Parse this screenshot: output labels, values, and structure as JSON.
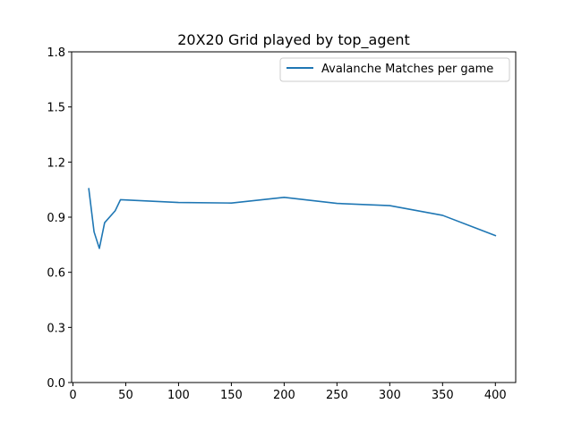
{
  "chart_data": {
    "type": "line",
    "title": "20X20 Grid played by top_agent",
    "xlabel": "",
    "ylabel": "",
    "xlim": [
      -1.25,
      419.25
    ],
    "ylim": [
      0.0,
      1.8
    ],
    "xticks": [
      0,
      50,
      100,
      150,
      200,
      250,
      300,
      350,
      400
    ],
    "xtick_labels": [
      "0",
      "50",
      "100",
      "150",
      "200",
      "250",
      "300",
      "350",
      "400"
    ],
    "yticks": [
      0.0,
      0.3,
      0.6,
      0.9,
      1.2,
      1.5,
      1.8
    ],
    "ytick_labels": [
      "0.0",
      "0.3",
      "0.6",
      "0.9",
      "1.2",
      "1.5",
      "1.8"
    ],
    "grid": false,
    "legend": "upper right",
    "series": [
      {
        "name": "Avalanche Matches per game",
        "color": "#1f77b4",
        "x": [
          15,
          20,
          25,
          30,
          40,
          45,
          100,
          150,
          200,
          250,
          300,
          350,
          400
        ],
        "y": [
          1.055,
          0.82,
          0.73,
          0.87,
          0.935,
          0.995,
          0.98,
          0.977,
          1.008,
          0.975,
          0.963,
          0.91,
          0.8
        ]
      }
    ]
  }
}
